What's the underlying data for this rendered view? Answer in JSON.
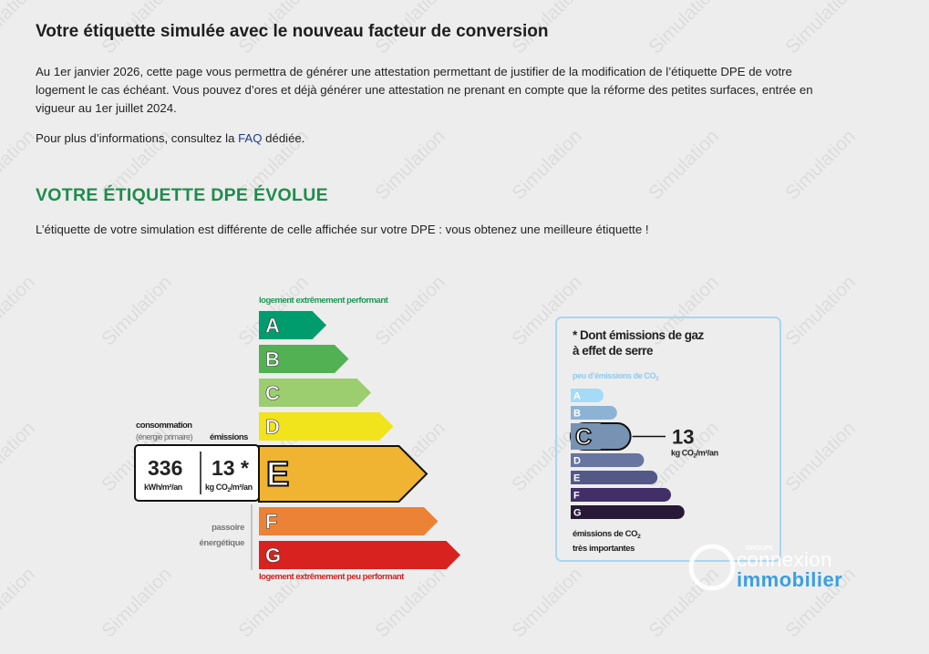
{
  "header": {
    "title": "Votre étiquette simulée avec le nouveau facteur de conversion"
  },
  "intro": {
    "paragraph": "Au 1er janvier 2026, cette page vous permettra de générer une attestation permettant de justifier de la modification de l’étiquette DPE de votre logement le cas échéant. Vous pouvez d’ores et déjà générer une attestation ne prenant en compte que la réforme des petites surfaces, entrée en vigueur au 1er juillet 2024.",
    "more_before": "Pour plus d’informations, consultez la ",
    "more_link": "FAQ",
    "more_after": " dédiée."
  },
  "section": {
    "title": "VOTRE ÉTIQUETTE DPE ÉVOLUE",
    "text": "L’étiquette de votre simulation est différente de celle affichée sur votre DPE : vous obtenez une meilleure étiquette !"
  },
  "energy_label": {
    "top_note": "logement extrêmement performant",
    "bottom_note": "logement extrêmement peu performant",
    "classes": [
      "A",
      "B",
      "C",
      "D",
      "E",
      "F",
      "G"
    ],
    "colors": [
      "#009c6d",
      "#52b153",
      "#9ccd6f",
      "#f1e31c",
      "#f0b432",
      "#ec8235",
      "#d8221f"
    ],
    "current": "E",
    "consumption_label": "consommation",
    "consumption_sub": "(énergie primaire)",
    "emissions_label": "émissions",
    "consumption_value": "336",
    "consumption_unit": "kWh/m²/an",
    "emissions_value": "13 *",
    "emissions_unit": {
      "before": "kg CO",
      "sub": "2",
      "after": "/m²/an"
    },
    "passoire": [
      "passoire",
      "énergétique"
    ]
  },
  "ges_label": {
    "title": [
      "* Dont émissions de gaz",
      "à effet de serre"
    ],
    "top_note": {
      "before": "peu d’émissions de CO",
      "sub": "2"
    },
    "classes": [
      "A",
      "B",
      "C",
      "D",
      "E",
      "F",
      "G"
    ],
    "colors": [
      "#a4dbf7",
      "#8cb3d3",
      "#7792b2",
      "#6775a0",
      "#545887",
      "#422f68",
      "#281a36"
    ],
    "current": "C",
    "value": "13",
    "unit": {
      "before": "kg CO",
      "sub": "2",
      "after": "/m²/an"
    },
    "bottom_note": [
      {
        "before": "émissions de CO",
        "sub": "2"
      },
      "très importantes"
    ]
  },
  "watermark": "Simulation",
  "logo": {
    "group": "GROUPE",
    "name": "connexion",
    "brand": "immobilier"
  }
}
